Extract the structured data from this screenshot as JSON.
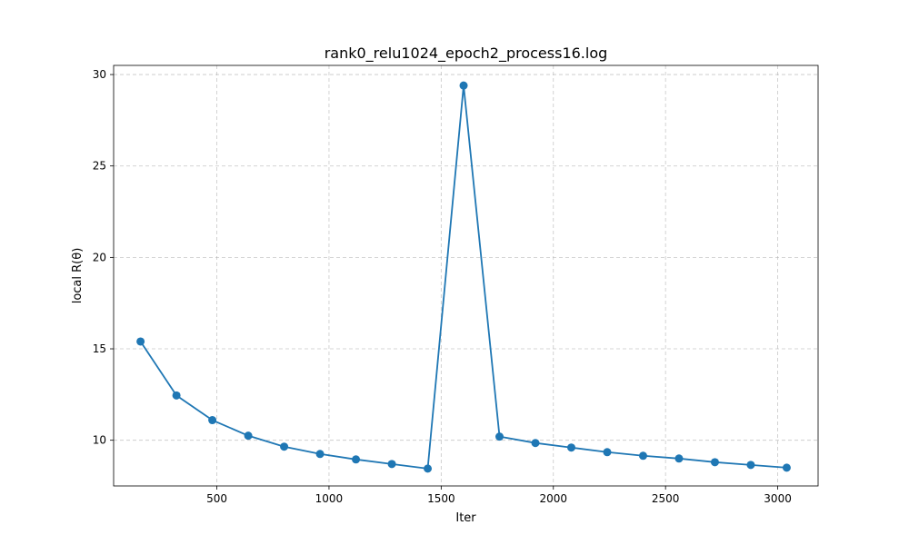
{
  "chart_data": {
    "type": "line",
    "title": "rank0_relu1024_epoch2_process16.log",
    "xlabel": "Iter",
    "ylabel": "local R(θ)",
    "xlim": [
      40,
      3180
    ],
    "ylim": [
      7.5,
      30.5
    ],
    "grid": true,
    "marker": "circle",
    "xticks": [
      500,
      1000,
      1500,
      2000,
      2500,
      3000
    ],
    "xtick_labels": [
      "500",
      "1000",
      "1500",
      "2000",
      "2500",
      "3000"
    ],
    "yticks": [
      10,
      15,
      20,
      25,
      30
    ],
    "ytick_labels": [
      "10",
      "15",
      "20",
      "25",
      "30"
    ],
    "colors": {
      "series": "#1f77b4"
    },
    "series": [
      {
        "x": [
          160,
          320,
          480,
          640,
          800,
          960,
          1120,
          1280,
          1440,
          1600,
          1760,
          1920,
          2080,
          2240,
          2400,
          2560,
          2720,
          2880,
          3040
        ],
        "y": [
          15.4,
          12.45,
          11.1,
          10.25,
          9.65,
          9.25,
          8.95,
          8.7,
          8.45,
          29.4,
          10.2,
          9.85,
          9.6,
          9.35,
          9.15,
          9.0,
          8.8,
          8.65,
          8.5
        ]
      }
    ]
  }
}
